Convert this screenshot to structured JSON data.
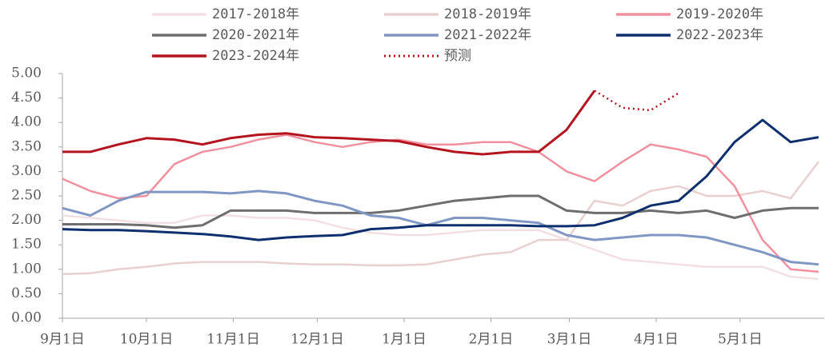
{
  "chart_data": {
    "type": "line",
    "x": [
      0,
      10,
      20,
      30,
      40,
      50,
      60,
      70,
      80,
      90,
      100,
      110,
      120,
      130,
      140,
      150,
      160,
      170,
      180,
      190,
      200,
      210,
      220,
      230,
      240,
      250,
      260,
      270
    ],
    "xlim": [
      0,
      272
    ],
    "xticks": [
      {
        "value": 0,
        "label": "9月1日"
      },
      {
        "value": 30,
        "label": "10月1日"
      },
      {
        "value": 61,
        "label": "11月1日"
      },
      {
        "value": 91,
        "label": "12月1日"
      },
      {
        "value": 122,
        "label": "1月1日"
      },
      {
        "value": 153,
        "label": "2月1日"
      },
      {
        "value": 181,
        "label": "3月1日"
      },
      {
        "value": 212,
        "label": "4月1日"
      },
      {
        "value": 242,
        "label": "5月1日"
      }
    ],
    "ylim": [
      0,
      5
    ],
    "yticks": [
      {
        "value": 0,
        "label": "0.00"
      },
      {
        "value": 0.5,
        "label": "0.50"
      },
      {
        "value": 1,
        "label": "1.00"
      },
      {
        "value": 1.5,
        "label": "1.50"
      },
      {
        "value": 2,
        "label": "2.00"
      },
      {
        "value": 2.5,
        "label": "2.50"
      },
      {
        "value": 3,
        "label": "3.00"
      },
      {
        "value": 3.5,
        "label": "3.50"
      },
      {
        "value": 4,
        "label": "4.00"
      },
      {
        "value": 4.5,
        "label": "4.50"
      },
      {
        "value": 5,
        "label": "5.00"
      }
    ],
    "grid": false,
    "series": [
      {
        "name": "2017-2018年",
        "color": "#f2dfe2",
        "width": 2.5,
        "values": [
          2.1,
          2.05,
          2.0,
          1.95,
          1.95,
          2.1,
          2.1,
          2.05,
          2.05,
          2.0,
          1.85,
          1.75,
          1.7,
          1.7,
          1.75,
          1.8,
          1.8,
          1.8,
          1.6,
          1.4,
          1.2,
          1.15,
          1.1,
          1.05,
          1.05,
          1.05,
          0.85,
          0.8
        ]
      },
      {
        "name": "2018-2019年",
        "color": "#e8cfd0",
        "width": 2.5,
        "values": [
          0.9,
          0.92,
          1.0,
          1.05,
          1.12,
          1.15,
          1.15,
          1.15,
          1.12,
          1.1,
          1.1,
          1.08,
          1.08,
          1.1,
          1.2,
          1.3,
          1.35,
          1.6,
          1.6,
          2.4,
          2.3,
          2.6,
          2.7,
          2.5,
          2.5,
          2.6,
          2.45,
          3.2
        ]
      },
      {
        "name": "2019-2020年",
        "color": "#f0909e",
        "width": 2.5,
        "values": [
          2.85,
          2.6,
          2.45,
          2.5,
          3.15,
          3.4,
          3.5,
          3.65,
          3.75,
          3.6,
          3.5,
          3.6,
          3.65,
          3.55,
          3.55,
          3.6,
          3.6,
          3.4,
          3.0,
          2.8,
          3.2,
          3.55,
          3.45,
          3.3,
          2.7,
          1.6,
          1.0,
          0.95
        ]
      },
      {
        "name": "2020-2021年",
        "color": "#6e6e6e",
        "width": 3,
        "values": [
          1.92,
          1.92,
          1.92,
          1.9,
          1.85,
          1.9,
          2.2,
          2.2,
          2.2,
          2.15,
          2.15,
          2.15,
          2.2,
          2.3,
          2.4,
          2.45,
          2.5,
          2.5,
          2.2,
          2.15,
          2.15,
          2.2,
          2.15,
          2.2,
          2.05,
          2.2,
          2.25,
          2.25
        ]
      },
      {
        "name": "2021-2022年",
        "color": "#8097c4",
        "width": 3,
        "values": [
          2.25,
          2.1,
          2.4,
          2.58,
          2.58,
          2.58,
          2.55,
          2.6,
          2.55,
          2.4,
          2.3,
          2.1,
          2.05,
          1.9,
          2.05,
          2.05,
          2.0,
          1.95,
          1.7,
          1.6,
          1.65,
          1.7,
          1.7,
          1.65,
          1.5,
          1.35,
          1.15,
          1.1
        ]
      },
      {
        "name": "2022-2023年",
        "color": "#0e2f6e",
        "width": 3,
        "values": [
          1.82,
          1.8,
          1.8,
          1.78,
          1.75,
          1.72,
          1.67,
          1.6,
          1.65,
          1.68,
          1.7,
          1.82,
          1.85,
          1.9,
          1.9,
          1.9,
          1.9,
          1.88,
          1.88,
          1.9,
          2.05,
          2.3,
          2.4,
          2.9,
          3.6,
          4.05,
          3.6,
          3.7
        ]
      },
      {
        "name": "2023-2024年",
        "color": "#b3141d",
        "width": 3,
        "values": [
          3.4,
          3.4,
          3.55,
          3.68,
          3.65,
          3.55,
          3.68,
          3.75,
          3.78,
          3.7,
          3.68,
          3.65,
          3.62,
          3.5,
          3.4,
          3.35,
          3.4,
          3.4,
          3.85,
          4.65,
          null,
          null,
          null,
          null,
          null,
          null,
          null,
          null
        ]
      },
      {
        "name": "预测",
        "color": "#b3141d",
        "width": 2.5,
        "dash": "2 4",
        "values": [
          null,
          null,
          null,
          null,
          null,
          null,
          null,
          null,
          null,
          null,
          null,
          null,
          null,
          null,
          null,
          null,
          null,
          null,
          null,
          4.65,
          4.3,
          4.25,
          4.6,
          null,
          null,
          null,
          null,
          null
        ]
      }
    ]
  }
}
